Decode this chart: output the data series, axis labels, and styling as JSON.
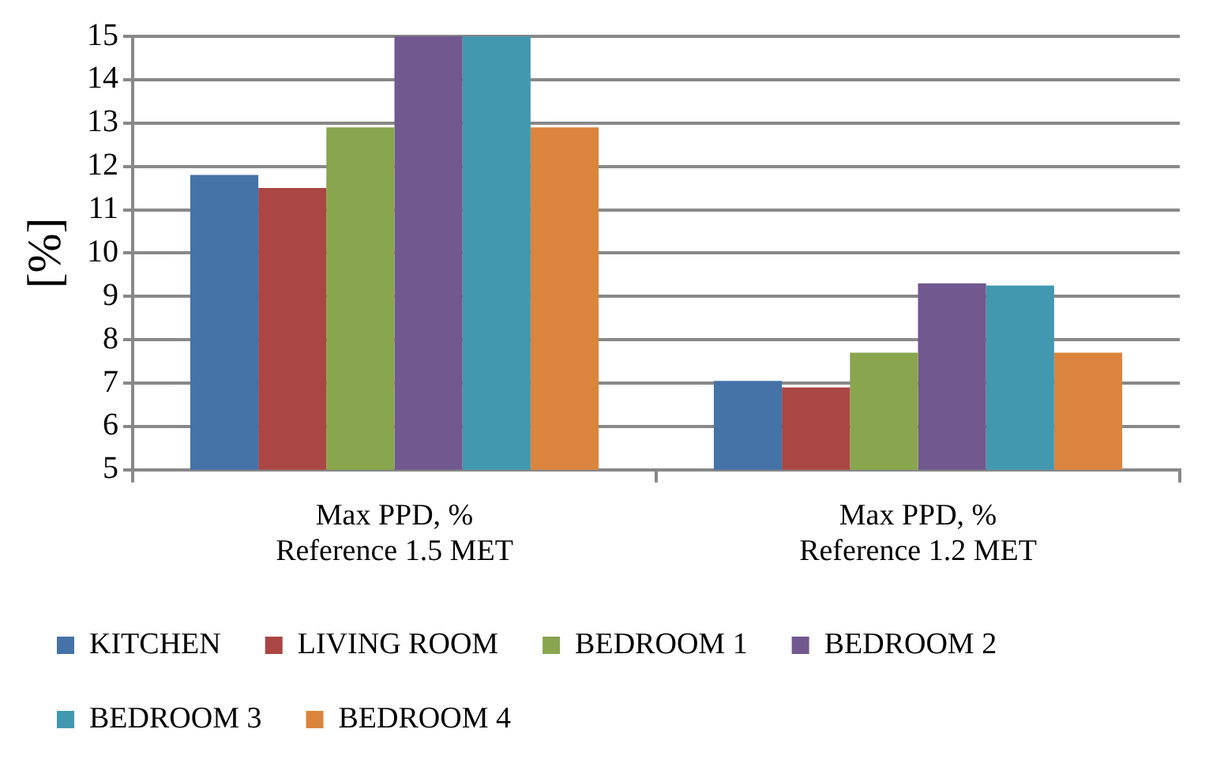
{
  "chart_data": {
    "type": "bar",
    "ylabel": "[%]",
    "categories": [
      "Max PPD, %\nReference 1.5 MET",
      "Max PPD, %\nReference 1.2 MET"
    ],
    "series": [
      {
        "name": "KITCHEN",
        "color": "#4572a7",
        "values": [
          11.8,
          7.05
        ]
      },
      {
        "name": "LIVING ROOM",
        "color": "#aa4643",
        "values": [
          11.5,
          6.9
        ]
      },
      {
        "name": "BEDROOM 1",
        "color": "#89a54e",
        "values": [
          12.9,
          7.7
        ]
      },
      {
        "name": "BEDROOM 2",
        "color": "#71588f",
        "values": [
          15,
          9.3
        ]
      },
      {
        "name": "BEDROOM 3",
        "color": "#4198af",
        "values": [
          15,
          9.25
        ]
      },
      {
        "name": "BEDROOM 4",
        "color": "#db843d",
        "values": [
          12.9,
          7.7
        ]
      }
    ],
    "ylim": [
      5,
      15
    ],
    "yticks": [
      5,
      6,
      7,
      8,
      9,
      10,
      11,
      12,
      13,
      14,
      15
    ],
    "grid": "y",
    "legend": "bottom"
  }
}
